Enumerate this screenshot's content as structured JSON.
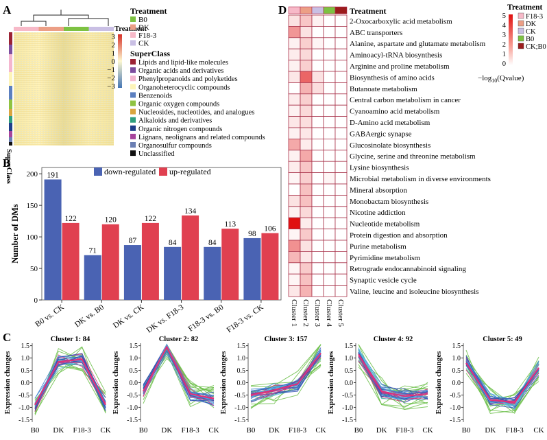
{
  "panel_letters": [
    "A",
    "B",
    "C",
    "D"
  ],
  "panel_a": {
    "treatment_title": "Treatment",
    "treatment_label": "Treatment",
    "treatments": [
      {
        "name": "B0",
        "color": "#7dc242"
      },
      {
        "name": "DK",
        "color": "#ec9f86"
      },
      {
        "name": "F18-3",
        "color": "#f7b9c8"
      },
      {
        "name": "CK",
        "color": "#c9bfe4"
      }
    ],
    "scale_ticks": [
      "3",
      "2",
      "1",
      "0",
      "−1",
      "−2",
      "−3"
    ],
    "superclass_title": "SuperClass",
    "superclass_axis_label": "SuperClass",
    "superclasses": [
      {
        "name": "Lipids and lipid-like molecules",
        "color": "#9b2335"
      },
      {
        "name": "Organic acids and derivatives",
        "color": "#7d4e9f"
      },
      {
        "name": "Phenylpropanoids and polyketides",
        "color": "#f4b6cf"
      },
      {
        "name": "Organoheterocyclic compounds",
        "color": "#fdf4b8"
      },
      {
        "name": "Benzenoids",
        "color": "#5b7fc0"
      },
      {
        "name": "Organic oxygen compounds",
        "color": "#8fc341"
      },
      {
        "name": "Nucleosides, nucleotides, and analogues",
        "color": "#d9a53f"
      },
      {
        "name": "Alkaloids and derivatives",
        "color": "#2f9e7e"
      },
      {
        "name": "Organic nitrogen compounds",
        "color": "#1f3e8a"
      },
      {
        "name": "Lignans, neolignans and related compounds",
        "color": "#a7449c"
      },
      {
        "name": "Organosulfur compounds",
        "color": "#6b7fb3"
      },
      {
        "name": "Unclassified",
        "color": "#111111"
      }
    ]
  },
  "chart_data": [
    {
      "id": "B",
      "type": "bar",
      "ylabel": "Number of DMs",
      "ylim": [
        0,
        210
      ],
      "yticks": [
        0,
        50,
        100,
        150,
        200
      ],
      "categories": [
        "B0 vs. CK",
        "DK vs. B0",
        "DK vs. CK",
        "DK vs. F18-3",
        "F18-3 vs. B0",
        "F18-3 vs. CK"
      ],
      "series": [
        {
          "name": "down-regulated",
          "color": "#4a63b3",
          "values": [
            191,
            71,
            87,
            84,
            84,
            98
          ]
        },
        {
          "name": "up-regulated",
          "color": "#e04050",
          "values": [
            122,
            120,
            122,
            134,
            113,
            106
          ]
        }
      ]
    },
    {
      "id": "C",
      "type": "line",
      "ylabel": "Expression changes",
      "x": [
        "B0",
        "DK",
        "F18-3",
        "CK"
      ],
      "yticks": [
        -1.5,
        -1.0,
        -0.5,
        0.0,
        0.5,
        1.0,
        1.5
      ],
      "ylim": [
        -1.6,
        1.6
      ],
      "clusters": [
        {
          "title": "Cluster 1: 84",
          "mean": [
            -0.9,
            0.85,
            0.95,
            -0.9
          ]
        },
        {
          "title": "Cluster 2: 82",
          "mean": [
            -0.35,
            1.45,
            -0.45,
            -0.65
          ]
        },
        {
          "title": "Cluster 3: 157",
          "mean": [
            -0.5,
            -0.3,
            -0.05,
            1.2
          ]
        },
        {
          "title": "Cluster 4: 92",
          "mean": [
            1.15,
            -0.35,
            -0.55,
            -0.45
          ]
        },
        {
          "title": "Cluster 5: 49",
          "mean": [
            0.8,
            -0.7,
            -0.8,
            0.6
          ]
        }
      ]
    },
    {
      "id": "D",
      "type": "heatmap",
      "legend_title": "Treatment",
      "treatment_legend": [
        {
          "name": "F18-3",
          "color": "#f7b9c8"
        },
        {
          "name": "DK",
          "color": "#ec9f86"
        },
        {
          "name": "CK",
          "color": "#c9bfe4"
        },
        {
          "name": "B0",
          "color": "#7dc242"
        },
        {
          "name": "CK;B0",
          "color": "#9b1c1c"
        }
      ],
      "scale_ticks": [
        "5",
        "4",
        "3",
        "2",
        "1",
        "0"
      ],
      "scale_label_pre": "−log",
      "scale_label_sub": "10",
      "scale_label_post": "(Qvalue)",
      "treatment_bar_label": "Treatment",
      "columns": [
        "Cluster 1",
        "Cluster 2",
        "Cluster 3",
        "Cluster 4",
        "Cluster 5"
      ],
      "rows": [
        "2-Oxocarboxylic acid metabolism",
        "ABC transporters",
        "Alanine, aspartate and glutamate metabolism",
        "Aminoacyl-tRNA biosynthesis",
        "Arginine and proline metabolism",
        "Biosynthesis of amino acids",
        "Butanoate metabolism",
        "Central carbon metabolism in cancer",
        "Cyanoamino acid metabolism",
        "D-Amino acid metabolism",
        "GABAergic synapse",
        "Glucosinolate biosynthesis",
        "Glycine, serine and threonine metabolism",
        "Lysine biosynthesis",
        "Microbial metabolism in diverse environments",
        "Mineral absorption",
        "Monobactam biosynthesis",
        "Nicotine addiction",
        "Nucleotide metabolism",
        "Protein digestion and absorption",
        "Purine metabolism",
        "Pyrimidine metabolism",
        "Retrograde endocannabinoid signaling",
        "Synaptic vesicle cycle",
        "Valine, leucine and isoleucine biosynthesis"
      ],
      "values": [
        [
          0.6,
          1.2,
          0.3,
          0,
          0
        ],
        [
          2.2,
          0.6,
          0,
          0,
          0
        ],
        [
          0.3,
          1.0,
          0.2,
          0,
          0
        ],
        [
          0.4,
          0.8,
          0,
          0,
          0
        ],
        [
          0.3,
          1.0,
          0,
          0,
          0
        ],
        [
          0.5,
          3.2,
          0.6,
          0,
          0
        ],
        [
          0,
          1.6,
          0.7,
          0,
          0
        ],
        [
          0.4,
          1.0,
          0,
          0,
          0
        ],
        [
          0.3,
          0.8,
          0,
          0,
          0
        ],
        [
          0.5,
          0.7,
          0,
          0,
          0
        ],
        [
          0.3,
          0.5,
          0,
          0,
          0
        ],
        [
          1.8,
          0.4,
          0,
          0,
          0
        ],
        [
          0.3,
          1.8,
          0,
          0,
          0
        ],
        [
          0.4,
          1.2,
          0,
          0,
          0
        ],
        [
          0.2,
          1.0,
          0,
          0.2,
          0
        ],
        [
          0,
          1.3,
          0,
          0,
          0
        ],
        [
          0.6,
          1.3,
          0,
          0,
          0
        ],
        [
          0.3,
          0.8,
          0,
          0,
          0
        ],
        [
          5.0,
          0.4,
          0,
          0,
          0
        ],
        [
          0.2,
          1.1,
          0,
          0,
          0
        ],
        [
          2.3,
          0.6,
          0,
          0,
          0
        ],
        [
          1.5,
          0.5,
          0,
          0,
          0
        ],
        [
          0.2,
          1.1,
          0,
          0,
          0
        ],
        [
          0.2,
          1.3,
          0,
          0,
          0
        ],
        [
          0.5,
          1.6,
          0,
          0,
          0
        ]
      ]
    }
  ]
}
